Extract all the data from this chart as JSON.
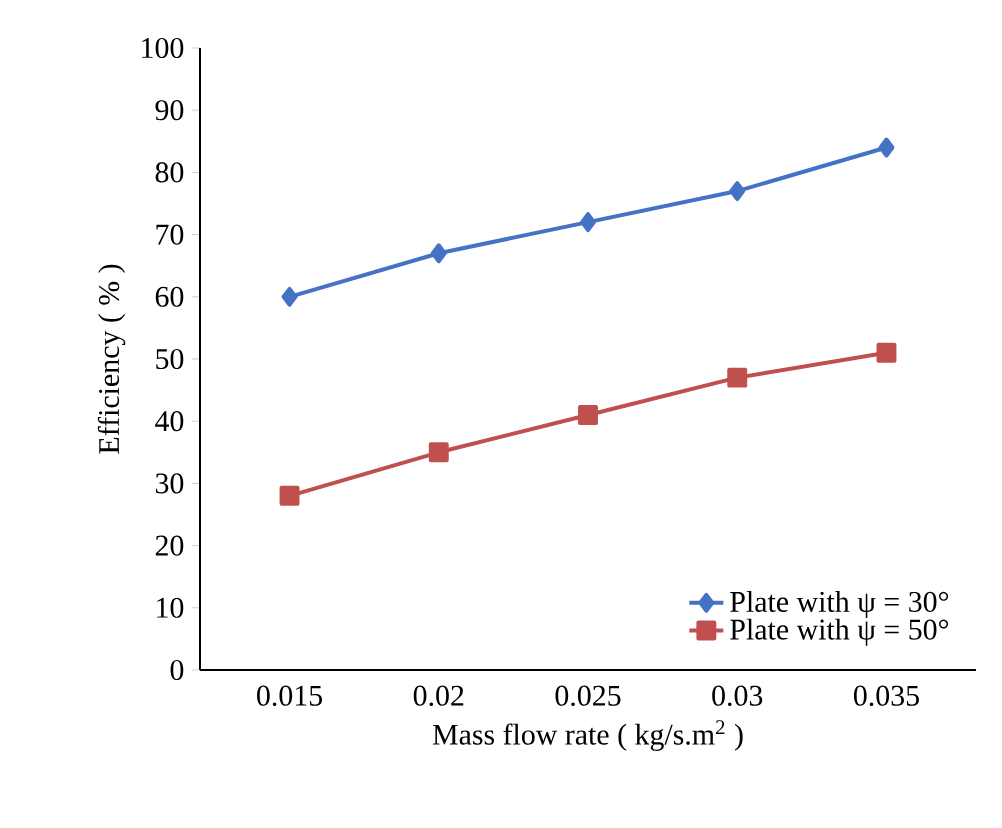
{
  "chart_data": {
    "type": "line",
    "xlabel": "Mass flow rate ( kg/s.m$^{2}$ )",
    "ylabel": "Efficiency ( % )",
    "categories": [
      "0.015",
      "0.02",
      "0.025",
      "0.03",
      "0.035"
    ],
    "series": [
      {
        "name": "Plate with ψ = 30°",
        "color": "#4472c4",
        "marker": "diamond",
        "values": [
          60,
          67,
          72,
          77,
          84
        ]
      },
      {
        "name": "Plate with ψ = 50°",
        "color": "#c0504d",
        "marker": "square",
        "values": [
          28,
          35,
          41,
          47,
          51
        ]
      }
    ],
    "ylim": [
      0,
      100
    ],
    "yticks": [
      0,
      10,
      20,
      30,
      40,
      50,
      60,
      70,
      80,
      90,
      100
    ],
    "legend": "bottom right",
    "grid": false,
    "line_style": "solid"
  }
}
